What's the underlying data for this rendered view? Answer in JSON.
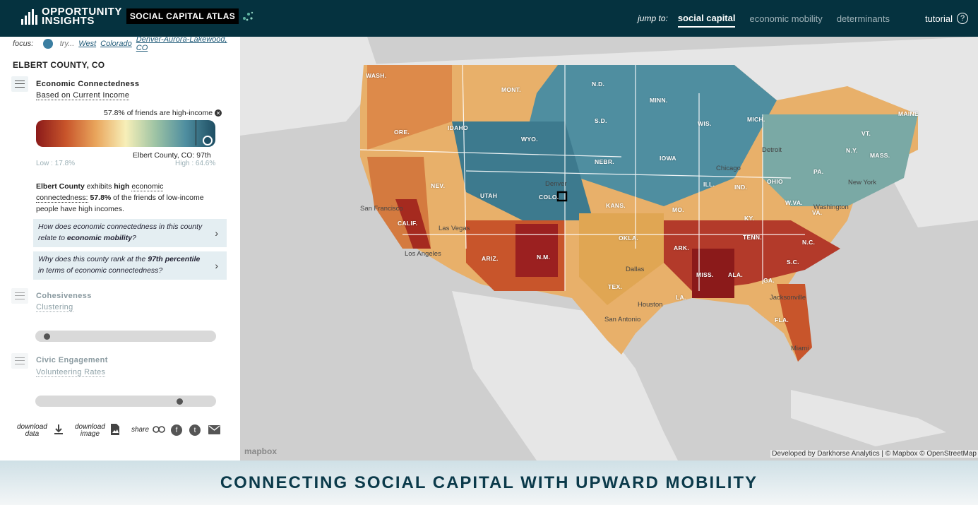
{
  "header": {
    "logo_line1": "OPPORTUNITY",
    "logo_line2": "INSIGHTS",
    "atlas_badge": "SOCIAL CAPITAL ATLAS",
    "jump_label": "jump to:",
    "tabs": [
      {
        "label": "social capital",
        "active": true
      },
      {
        "label": "economic mobility",
        "active": false
      },
      {
        "label": "determinants",
        "active": false
      }
    ],
    "tutorial": "tutorial",
    "help_symbol": "?"
  },
  "panel": {
    "focus_label": "focus:",
    "try_label": "try...",
    "try_links": [
      "West",
      "Colorado",
      "Denver-Aurora-Lakewood, CO"
    ],
    "county_title": "ELBERT COUNTY, CO",
    "metric1": {
      "title": "Economic Connectedness",
      "subtitle": "Based on Current Income",
      "annotation": "57.8% of friends are high-income",
      "rank_label": "Elbert County, CO: 97th",
      "low": "Low : 17.8%",
      "high": "High : 64.6%",
      "value_fraction": 0.86
    },
    "description": {
      "county": "Elbert County",
      "p1": " exhibits ",
      "level": "high",
      "term": "economic connectedness:",
      "value": "57.8%",
      "rest": " of the friends of low-income people have high incomes."
    },
    "questions": [
      {
        "pre": "How does economic connectedness in this county relate to ",
        "bold": "economic mobility",
        "post": "?"
      },
      {
        "pre": "Why does this county rank at the ",
        "bold": "97th percentile",
        "post": " in terms of economic connectedness?"
      }
    ],
    "metric2": {
      "title": "Cohesiveness",
      "subtitle": "Clustering",
      "slider_fraction": 0.04
    },
    "metric3": {
      "title": "Civic Engagement",
      "subtitle": "Volunteering Rates",
      "slider_fraction": 0.8
    },
    "tools": {
      "download_data": [
        "download",
        "data"
      ],
      "download_image": [
        "download",
        "image"
      ],
      "share": "share"
    }
  },
  "map": {
    "state_labels": [
      "WASH.",
      "MONT.",
      "N.D.",
      "MINN.",
      "ORE.",
      "IDAHO",
      "WYO.",
      "S.D.",
      "WIS.",
      "MICH.",
      "MAINE",
      "IOWA",
      "NEBR.",
      "NEV.",
      "UTAH",
      "COLO.",
      "KANS.",
      "MO.",
      "ILL.",
      "IND.",
      "OHIO",
      "PA.",
      "N.Y.",
      "VT.",
      "MASS.",
      "CALIF.",
      "ARIZ.",
      "N.M.",
      "OKLA.",
      "ARK.",
      "TENN.",
      "KY.",
      "W.VA.",
      "VA.",
      "N.C.",
      "S.C.",
      "GA.",
      "ALA.",
      "MISS.",
      "LA.",
      "TEX.",
      "FLA."
    ],
    "city_labels": [
      "Denver",
      "San Francisco",
      "Las Vegas",
      "Los Angeles",
      "Detroit",
      "Chicago",
      "New York",
      "Washington",
      "Dallas",
      "Houston",
      "San Antonio",
      "Jacksonville",
      "Miami"
    ],
    "mapbox_label": "mapbox",
    "credit": "Developed by Darkhorse Analytics | © Mapbox © OpenStreetMap"
  },
  "banner": {
    "text": "CONNECTING SOCIAL CAPITAL WITH UPWARD MOBILITY"
  }
}
